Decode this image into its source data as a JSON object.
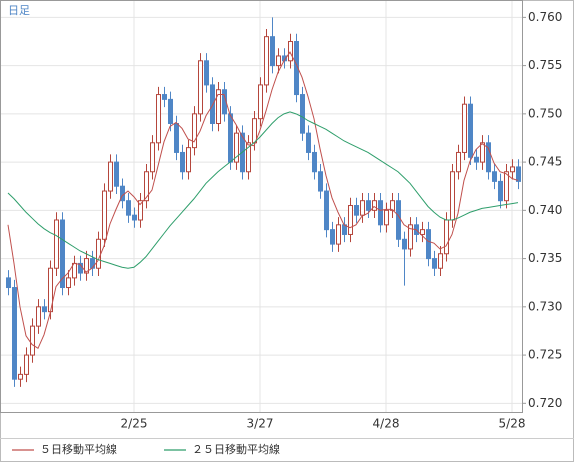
{
  "chart_data": {
    "type": "candlestick",
    "title": "日足",
    "categories": [
      null,
      null,
      null,
      null,
      null,
      null,
      null,
      null,
      null,
      null,
      null,
      null,
      null,
      null,
      null,
      null,
      null,
      null,
      null,
      null,
      null,
      "2/25",
      null,
      null,
      null,
      null,
      null,
      null,
      null,
      null,
      null,
      null,
      null,
      null,
      null,
      null,
      null,
      null,
      null,
      null,
      null,
      null,
      "3/27",
      null,
      null,
      null,
      null,
      null,
      null,
      null,
      null,
      null,
      null,
      null,
      null,
      null,
      null,
      null,
      null,
      null,
      null,
      null,
      null,
      "4/28",
      null,
      null,
      null,
      null,
      null,
      null,
      null,
      null,
      null,
      null,
      null,
      null,
      null,
      null,
      null,
      null,
      null,
      null,
      null,
      null,
      "5/28",
      null
    ],
    "ohlc": [
      [
        0.733,
        0.7338,
        0.7312,
        0.732
      ],
      [
        0.732,
        0.7328,
        0.7217,
        0.7225
      ],
      [
        0.7225,
        0.7238,
        0.7217,
        0.723
      ],
      [
        0.723,
        0.7258,
        0.7222,
        0.725
      ],
      [
        0.725,
        0.7288,
        0.7242,
        0.728
      ],
      [
        0.728,
        0.7308,
        0.7272,
        0.73
      ],
      [
        0.73,
        0.7308,
        0.7287,
        0.7295
      ],
      [
        0.7295,
        0.7348,
        0.7287,
        0.734
      ],
      [
        0.734,
        0.7398,
        0.7332,
        0.739
      ],
      [
        0.739,
        0.7398,
        0.7312,
        0.732
      ],
      [
        0.732,
        0.7338,
        0.7312,
        0.733
      ],
      [
        0.733,
        0.7353,
        0.7322,
        0.7345
      ],
      [
        0.7345,
        0.7353,
        0.7327,
        0.7335
      ],
      [
        0.7335,
        0.7358,
        0.7327,
        0.735
      ],
      [
        0.735,
        0.7358,
        0.7332,
        0.734
      ],
      [
        0.734,
        0.7378,
        0.7332,
        0.737
      ],
      [
        0.737,
        0.7428,
        0.7362,
        0.742
      ],
      [
        0.742,
        0.7458,
        0.7412,
        0.745
      ],
      [
        0.745,
        0.7458,
        0.7417,
        0.7425
      ],
      [
        0.7425,
        0.7433,
        0.7402,
        0.741
      ],
      [
        0.741,
        0.7418,
        0.7387,
        0.7395
      ],
      [
        0.7395,
        0.7403,
        0.7382,
        0.739
      ],
      [
        0.739,
        0.7418,
        0.7382,
        0.741
      ],
      [
        0.741,
        0.7448,
        0.7402,
        0.744
      ],
      [
        0.744,
        0.7478,
        0.7432,
        0.747
      ],
      [
        0.747,
        0.7528,
        0.7462,
        0.752
      ],
      [
        0.752,
        0.7528,
        0.7507,
        0.7515
      ],
      [
        0.7515,
        0.7523,
        0.7482,
        0.749
      ],
      [
        0.749,
        0.7498,
        0.7452,
        0.746
      ],
      [
        0.746,
        0.7468,
        0.7432,
        0.744
      ],
      [
        0.744,
        0.7473,
        0.7432,
        0.7465
      ],
      [
        0.7465,
        0.7508,
        0.7457,
        0.75
      ],
      [
        0.75,
        0.7563,
        0.7492,
        0.7555
      ],
      [
        0.7555,
        0.7563,
        0.7522,
        0.753
      ],
      [
        0.753,
        0.7538,
        0.7482,
        0.749
      ],
      [
        0.749,
        0.7533,
        0.7482,
        0.7525
      ],
      [
        0.7525,
        0.7533,
        0.7492,
        0.75
      ],
      [
        0.75,
        0.7508,
        0.7442,
        0.745
      ],
      [
        0.745,
        0.7488,
        0.7442,
        0.748
      ],
      [
        0.748,
        0.7488,
        0.7432,
        0.744
      ],
      [
        0.744,
        0.7478,
        0.7432,
        0.747
      ],
      [
        0.747,
        0.7503,
        0.7462,
        0.7495
      ],
      [
        0.7495,
        0.7538,
        0.7487,
        0.753
      ],
      [
        0.753,
        0.7588,
        0.7522,
        0.758
      ],
      [
        0.758,
        0.76,
        0.7542,
        0.755
      ],
      [
        0.755,
        0.7568,
        0.7542,
        0.756
      ],
      [
        0.756,
        0.7568,
        0.7547,
        0.7555
      ],
      [
        0.7555,
        0.7583,
        0.7547,
        0.7575
      ],
      [
        0.7575,
        0.7583,
        0.7512,
        0.752
      ],
      [
        0.752,
        0.7528,
        0.7472,
        0.748
      ],
      [
        0.748,
        0.7488,
        0.7452,
        0.746
      ],
      [
        0.746,
        0.7468,
        0.7432,
        0.744
      ],
      [
        0.744,
        0.7448,
        0.7412,
        0.742
      ],
      [
        0.742,
        0.7428,
        0.7372,
        0.738
      ],
      [
        0.738,
        0.7388,
        0.7357,
        0.7365
      ],
      [
        0.7365,
        0.7393,
        0.7357,
        0.7385
      ],
      [
        0.7385,
        0.7393,
        0.7367,
        0.7375
      ],
      [
        0.7375,
        0.7413,
        0.7367,
        0.7405
      ],
      [
        0.7405,
        0.7413,
        0.7387,
        0.7395
      ],
      [
        0.7395,
        0.7418,
        0.7387,
        0.741
      ],
      [
        0.741,
        0.7418,
        0.7392,
        0.74
      ],
      [
        0.74,
        0.7418,
        0.7392,
        0.741
      ],
      [
        0.741,
        0.7418,
        0.7377,
        0.7385
      ],
      [
        0.7385,
        0.7408,
        0.7377,
        0.74
      ],
      [
        0.74,
        0.7418,
        0.7392,
        0.741
      ],
      [
        0.741,
        0.7418,
        0.7362,
        0.737
      ],
      [
        0.737,
        0.7378,
        0.7322,
        0.736
      ],
      [
        0.736,
        0.7393,
        0.7352,
        0.7385
      ],
      [
        0.7385,
        0.7393,
        0.7367,
        0.7375
      ],
      [
        0.7375,
        0.7388,
        0.7367,
        0.738
      ],
      [
        0.738,
        0.7388,
        0.7342,
        0.735
      ],
      [
        0.735,
        0.7358,
        0.7332,
        0.734
      ],
      [
        0.734,
        0.7363,
        0.7332,
        0.7355
      ],
      [
        0.7355,
        0.7398,
        0.7347,
        0.739
      ],
      [
        0.739,
        0.7448,
        0.7382,
        0.744
      ],
      [
        0.744,
        0.7468,
        0.7432,
        0.746
      ],
      [
        0.746,
        0.7518,
        0.7452,
        0.751
      ],
      [
        0.751,
        0.7518,
        0.7447,
        0.7455
      ],
      [
        0.7455,
        0.7463,
        0.7442,
        0.745
      ],
      [
        0.745,
        0.7478,
        0.7442,
        0.747
      ],
      [
        0.747,
        0.7478,
        0.7432,
        0.744
      ],
      [
        0.744,
        0.7448,
        0.7422,
        0.743
      ],
      [
        0.743,
        0.7438,
        0.7402,
        0.741
      ],
      [
        0.741,
        0.7448,
        0.7402,
        0.744
      ],
      [
        0.744,
        0.7453,
        0.7432,
        0.7445
      ],
      [
        0.7445,
        0.7453,
        0.7422,
        0.743
      ]
    ],
    "up_color": "#b5463c",
    "down_color": "#4f86c6",
    "series": [
      {
        "name": "５日移動平均線",
        "color": "#c0504d",
        "values": [
          0.7385,
          0.7345,
          0.73,
          0.727,
          0.7261,
          0.7257,
          0.7271,
          0.7293,
          0.7321,
          0.7329,
          0.7335,
          0.7345,
          0.7344,
          0.7336,
          0.734,
          0.7348,
          0.7363,
          0.7386,
          0.7401,
          0.7415,
          0.742,
          0.7414,
          0.7406,
          0.7413,
          0.7421,
          0.7446,
          0.7471,
          0.7487,
          0.7491,
          0.7485,
          0.7474,
          0.7471,
          0.7482,
          0.7498,
          0.7508,
          0.752,
          0.752,
          0.7499,
          0.7489,
          0.7477,
          0.7468,
          0.7467,
          0.7483,
          0.7503,
          0.7525,
          0.7543,
          0.7555,
          0.7564,
          0.7552,
          0.7538,
          0.7518,
          0.7495,
          0.7464,
          0.7436,
          0.7413,
          0.7398,
          0.7385,
          0.7382,
          0.7385,
          0.7394,
          0.7397,
          0.7404,
          0.74,
          0.7401,
          0.7401,
          0.7395,
          0.7385,
          0.7381,
          0.738,
          0.7374,
          0.7368,
          0.7366,
          0.736,
          0.7363,
          0.7375,
          0.7397,
          0.7431,
          0.7451,
          0.7463,
          0.7469,
          0.7465,
          0.7449,
          0.744,
          0.7438,
          0.7433,
          0.7431
        ]
      },
      {
        "name": "２５日移動平均線",
        "color": "#2e9e6b",
        "values": [
          0.7418,
          0.7412,
          0.7405,
          0.7398,
          0.7392,
          0.7386,
          0.7381,
          0.7377,
          0.7374,
          0.737,
          0.7366,
          0.7362,
          0.7358,
          0.7355,
          0.7352,
          0.7349,
          0.7347,
          0.7345,
          0.7343,
          0.7341,
          0.734,
          0.7341,
          0.7346,
          0.7352,
          0.736,
          0.7368,
          0.7376,
          0.7384,
          0.7391,
          0.7398,
          0.7405,
          0.7412,
          0.742,
          0.7428,
          0.7434,
          0.744,
          0.7445,
          0.745,
          0.7455,
          0.746,
          0.7465,
          0.747,
          0.7476,
          0.7483,
          0.749,
          0.7496,
          0.75,
          0.7502,
          0.75,
          0.7497,
          0.7493,
          0.749,
          0.7487,
          0.7484,
          0.748,
          0.7476,
          0.7472,
          0.7469,
          0.7466,
          0.7463,
          0.746,
          0.7456,
          0.7452,
          0.7448,
          0.7444,
          0.744,
          0.7434,
          0.7428,
          0.742,
          0.7412,
          0.7404,
          0.7398,
          0.7393,
          0.739,
          0.739,
          0.7392,
          0.7395,
          0.7398,
          0.74,
          0.7402,
          0.7403,
          0.7404,
          0.7405,
          0.7406,
          0.7407,
          0.7408
        ]
      }
    ],
    "ylim": [
      0.7191,
      0.7618
    ],
    "yticks": [
      {
        "value": 0.72,
        "label": "0.720"
      },
      {
        "value": 0.725,
        "label": "0.725"
      },
      {
        "value": 0.73,
        "label": "0.730"
      },
      {
        "value": 0.735,
        "label": "0.735"
      },
      {
        "value": 0.74,
        "label": "0.740"
      },
      {
        "value": 0.745,
        "label": "0.745"
      },
      {
        "value": 0.75,
        "label": "0.750"
      },
      {
        "value": 0.755,
        "label": "0.755"
      },
      {
        "value": 0.76,
        "label": "0.760"
      }
    ],
    "grid": true
  }
}
